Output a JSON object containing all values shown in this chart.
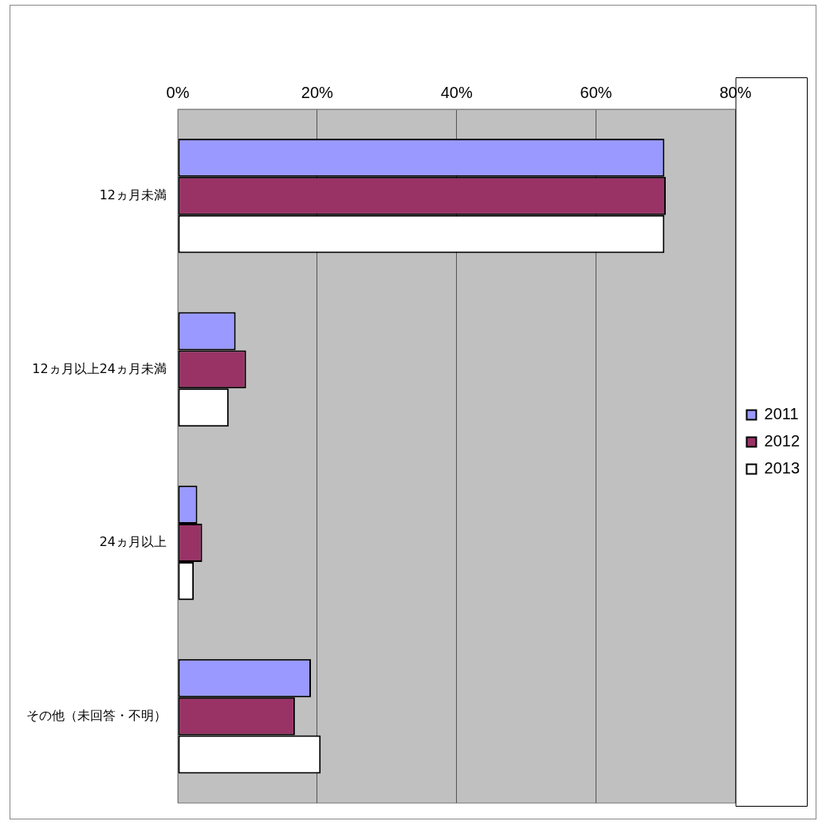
{
  "chart_data": {
    "type": "bar",
    "orientation": "horizontal",
    "categories": [
      "12ヵ月未満",
      "12ヵ月以上24ヵ月未満",
      "24ヵ月以上",
      "その他（未回答・不明）"
    ],
    "series": [
      {
        "name": "2011",
        "color": "#9999ff",
        "values": [
          69.8,
          8.3,
          2.8,
          19.1
        ]
      },
      {
        "name": "2012",
        "color": "#993366",
        "values": [
          70.0,
          9.8,
          3.5,
          16.8
        ]
      },
      {
        "name": "2013",
        "color": "#ffffff",
        "values": [
          69.8,
          7.3,
          2.3,
          20.5
        ]
      }
    ],
    "xlim": [
      0,
      80
    ],
    "xticks": [
      {
        "value": 0,
        "label": "0%"
      },
      {
        "value": 20,
        "label": "20%"
      },
      {
        "value": 40,
        "label": "40%"
      },
      {
        "value": 60,
        "label": "60%"
      },
      {
        "value": 80,
        "label": "80%"
      }
    ],
    "grid": "x",
    "legend": "right"
  }
}
